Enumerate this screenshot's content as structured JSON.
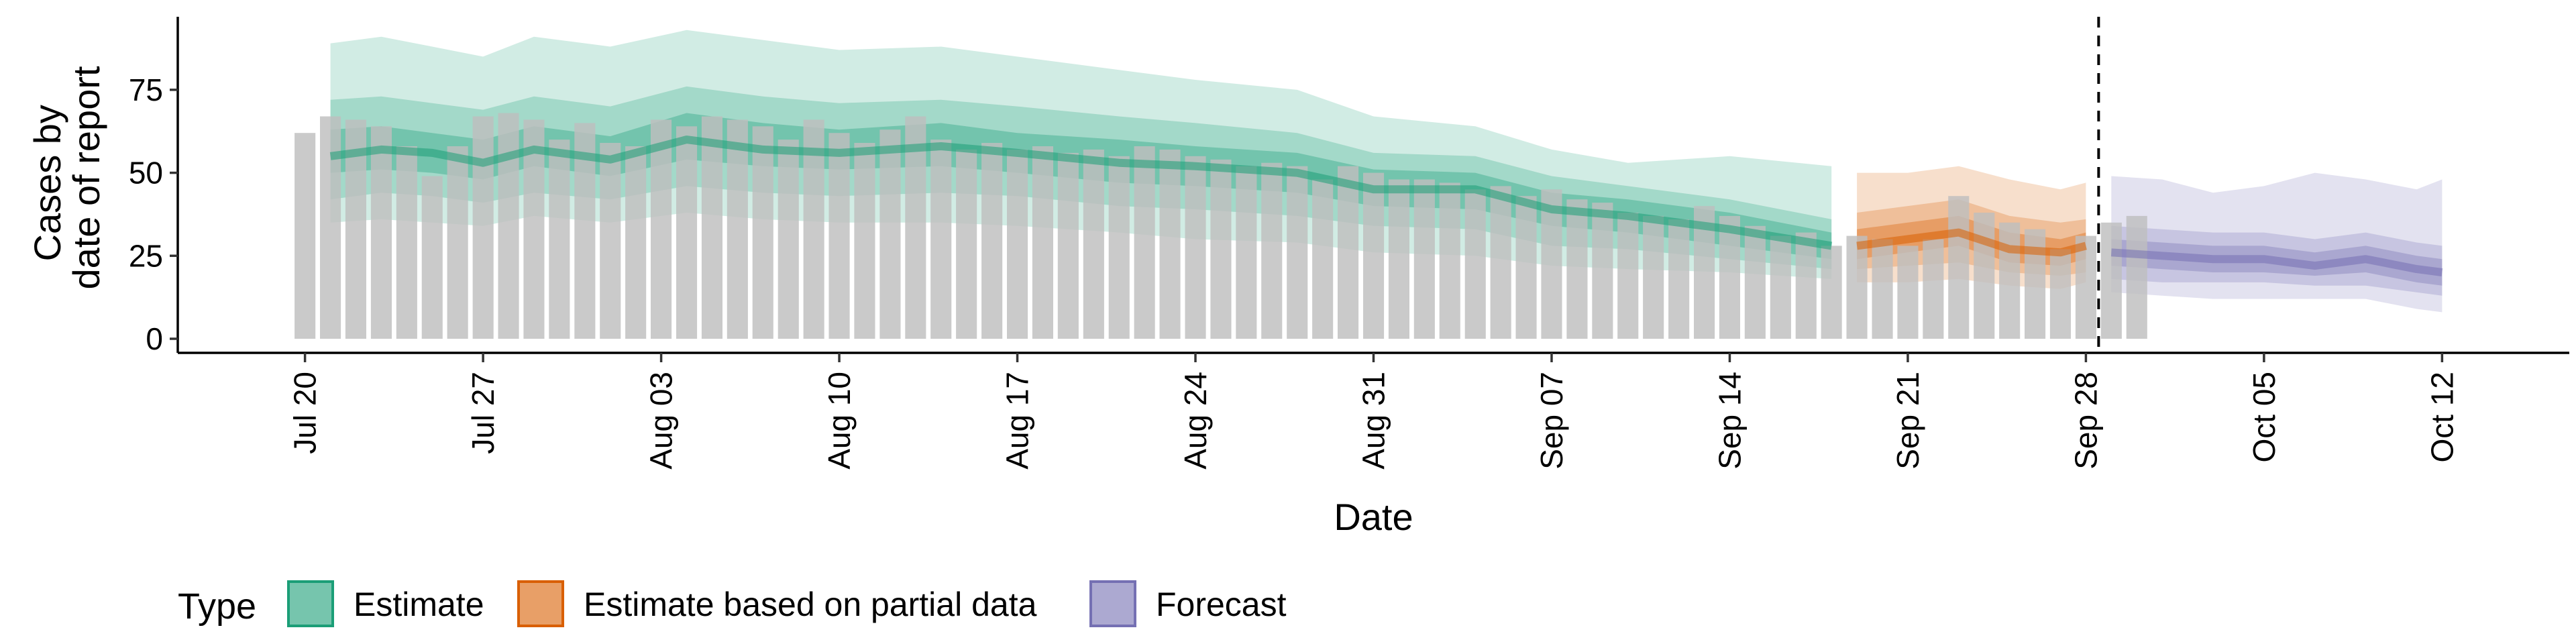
{
  "chart_data": {
    "type": "bar",
    "xlabel": "Date",
    "ylabel_lines": [
      "Cases by",
      "date of report"
    ],
    "ylim": [
      0,
      97
    ],
    "yticks": [
      0,
      25,
      50,
      75
    ],
    "xlim": [
      "2020-07-15",
      "2020-10-17"
    ],
    "xticks": [
      {
        "date": "2020-07-20",
        "label": "Jul 20"
      },
      {
        "date": "2020-07-27",
        "label": "Jul 27"
      },
      {
        "date": "2020-08-03",
        "label": "Aug 03"
      },
      {
        "date": "2020-08-10",
        "label": "Aug 10"
      },
      {
        "date": "2020-08-17",
        "label": "Aug 17"
      },
      {
        "date": "2020-08-24",
        "label": "Aug 24"
      },
      {
        "date": "2020-08-31",
        "label": "Aug 31"
      },
      {
        "date": "2020-09-07",
        "label": "Sep 07"
      },
      {
        "date": "2020-09-14",
        "label": "Sep 14"
      },
      {
        "date": "2020-09-21",
        "label": "Sep 21"
      },
      {
        "date": "2020-09-28",
        "label": "Sep 28"
      },
      {
        "date": "2020-10-05",
        "label": "Oct 05"
      },
      {
        "date": "2020-10-12",
        "label": "Oct 12"
      }
    ],
    "grid": false,
    "legend_position": "bottom",
    "legend_title": "Type",
    "legend": [
      {
        "key": "estimate",
        "label": "Estimate",
        "color": "#1b9e77"
      },
      {
        "key": "partial",
        "label": "Estimate based on partial data",
        "color": "#d95f02"
      },
      {
        "key": "forecast",
        "label": "Forecast",
        "color": "#7570b3"
      }
    ],
    "vline_date": "2020-09-28",
    "bar_color": "#bebebe",
    "bars": {
      "start_date": "2020-07-20",
      "values": [
        62,
        67,
        66,
        64,
        58,
        49,
        58,
        67,
        68,
        66,
        60,
        65,
        59,
        58,
        66,
        64,
        67,
        66,
        64,
        60,
        66,
        62,
        59,
        63,
        67,
        60,
        57,
        59,
        57,
        58,
        56,
        57,
        55,
        58,
        57,
        55,
        54,
        52,
        53,
        52,
        48,
        52,
        50,
        48,
        48,
        47,
        45,
        46,
        43,
        45,
        42,
        41,
        38,
        37,
        36,
        40,
        37,
        34,
        31,
        32,
        28,
        31,
        30,
        28,
        30,
        43,
        38,
        35,
        33,
        27,
        31,
        35,
        37
      ]
    },
    "bands": [
      {
        "type": "estimate",
        "dates": [
          "2020-07-21",
          "2020-07-23",
          "2020-07-25",
          "2020-07-27",
          "2020-07-29",
          "2020-08-01",
          "2020-08-04",
          "2020-08-07",
          "2020-08-10",
          "2020-08-14",
          "2020-08-17",
          "2020-08-21",
          "2020-08-24",
          "2020-08-28",
          "2020-08-31",
          "2020-09-04",
          "2020-09-07",
          "2020-09-10",
          "2020-09-14",
          "2020-09-18"
        ],
        "median": [
          55,
          57,
          56,
          53,
          57,
          54,
          60,
          57,
          56,
          58,
          56,
          53,
          52,
          50,
          45,
          45,
          39,
          37,
          33,
          28
        ],
        "inner_low": [
          50,
          51,
          50,
          48,
          52,
          49,
          54,
          52,
          51,
          52,
          50,
          47,
          46,
          44,
          40,
          39,
          34,
          32,
          28,
          24
        ],
        "inner_high": [
          63,
          64,
          62,
          60,
          64,
          61,
          68,
          65,
          63,
          65,
          62,
          60,
          58,
          56,
          51,
          50,
          44,
          42,
          38,
          32
        ],
        "mid_low": [
          42,
          44,
          43,
          41,
          44,
          42,
          46,
          44,
          43,
          44,
          43,
          40,
          39,
          37,
          34,
          33,
          28,
          27,
          24,
          21
        ],
        "mid_high": [
          72,
          73,
          71,
          69,
          73,
          70,
          76,
          73,
          71,
          72,
          70,
          67,
          65,
          62,
          56,
          55,
          49,
          46,
          42,
          36
        ],
        "outer_low": [
          35,
          36,
          35,
          34,
          37,
          35,
          38,
          36,
          35,
          35,
          34,
          32,
          30,
          29,
          26,
          25,
          22,
          21,
          20,
          18
        ],
        "outer_high": [
          89,
          91,
          88,
          85,
          91,
          88,
          93,
          90,
          87,
          88,
          85,
          81,
          78,
          75,
          67,
          64,
          57,
          53,
          55,
          52
        ]
      },
      {
        "type": "partial",
        "dates": [
          "2020-09-19",
          "2020-09-21",
          "2020-09-23",
          "2020-09-25",
          "2020-09-27",
          "2020-09-28"
        ],
        "median": [
          28,
          30,
          32,
          27,
          26,
          28
        ],
        "inner_low": [
          24,
          26,
          28,
          23,
          22,
          24
        ],
        "inner_high": [
          33,
          35,
          37,
          32,
          30,
          32
        ],
        "mid_low": [
          21,
          22,
          23,
          20,
          19,
          20
        ],
        "mid_high": [
          38,
          40,
          42,
          37,
          35,
          36
        ],
        "outer_low": [
          17,
          17,
          18,
          16,
          15,
          17
        ],
        "outer_high": [
          50,
          50,
          52,
          48,
          45,
          47
        ]
      },
      {
        "type": "forecast",
        "dates": [
          "2020-09-29",
          "2020-10-01",
          "2020-10-03",
          "2020-10-05",
          "2020-10-07",
          "2020-10-09",
          "2020-10-11",
          "2020-10-12"
        ],
        "median": [
          26,
          25,
          24,
          24,
          22,
          24,
          21,
          20
        ],
        "inner_low": [
          22,
          21,
          20,
          20,
          19,
          20,
          17,
          16
        ],
        "inner_high": [
          30,
          29,
          28,
          28,
          26,
          28,
          25,
          24
        ],
        "mid_low": [
          18,
          17,
          17,
          17,
          16,
          16,
          14,
          13
        ],
        "mid_high": [
          34,
          33,
          32,
          32,
          30,
          32,
          29,
          28
        ],
        "outer_low": [
          14,
          13,
          12,
          12,
          12,
          12,
          9,
          8
        ],
        "outer_high": [
          49,
          48,
          44,
          46,
          50,
          48,
          45,
          48
        ]
      }
    ]
  }
}
